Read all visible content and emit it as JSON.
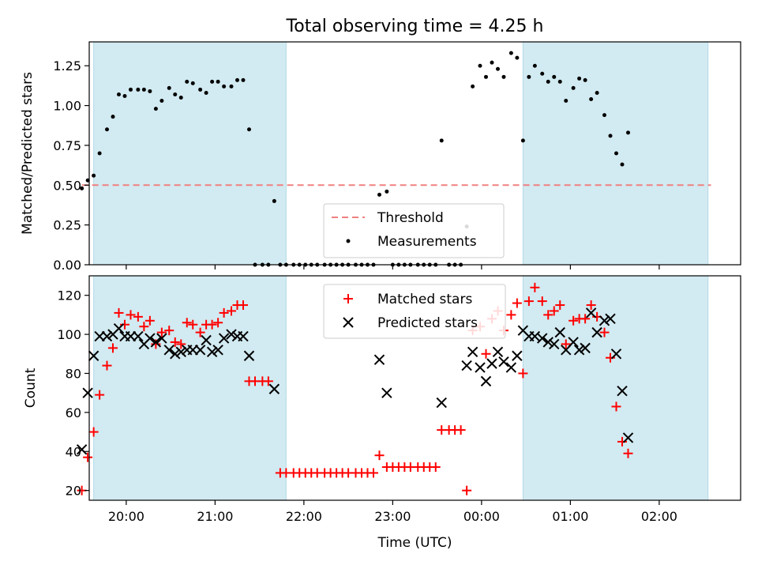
{
  "figure": {
    "title": "Total observing time = 4.25 h"
  },
  "chart_data": [
    {
      "type": "scatter",
      "panel": "top",
      "title": "Total observing time = 4.25 h",
      "xlabel": "",
      "ylabel": "Matched/Predicted stars",
      "xlim": [
        "19:35",
        "02:55"
      ],
      "ylim": [
        0,
        1.4
      ],
      "yticks": [
        0.0,
        0.25,
        0.5,
        0.75,
        1.0,
        1.25
      ],
      "ytick_labels": [
        "0.00",
        "0.25",
        "0.50",
        "0.75",
        "1.00",
        "1.25"
      ],
      "shaded_intervals": [
        [
          "19:38",
          "21:48"
        ],
        [
          "00:28",
          "02:33"
        ]
      ],
      "shade_color": "#add8e6",
      "threshold": {
        "name": "Threshold",
        "value": 0.5,
        "color": "#f08080",
        "style": "dashed"
      },
      "legend": {
        "placement": "bottom-center",
        "entries": [
          "Threshold",
          "Measurements"
        ]
      },
      "series": [
        {
          "name": "Measurements",
          "color": "#000000",
          "marker": "dot",
          "points": [
            [
              "19:30",
              0.48
            ],
            [
              "19:34",
              0.53
            ],
            [
              "19:38",
              0.56
            ],
            [
              "19:42",
              0.7
            ],
            [
              "19:47",
              0.85
            ],
            [
              "19:51",
              0.93
            ],
            [
              "19:55",
              1.07
            ],
            [
              "19:59",
              1.06
            ],
            [
              "20:03",
              1.1
            ],
            [
              "20:08",
              1.1
            ],
            [
              "20:12",
              1.1
            ],
            [
              "20:16",
              1.09
            ],
            [
              "20:20",
              0.98
            ],
            [
              "20:24",
              1.03
            ],
            [
              "20:29",
              1.11
            ],
            [
              "20:33",
              1.07
            ],
            [
              "20:37",
              1.05
            ],
            [
              "20:41",
              1.15
            ],
            [
              "20:45",
              1.14
            ],
            [
              "20:50",
              1.1
            ],
            [
              "20:54",
              1.08
            ],
            [
              "20:58",
              1.15
            ],
            [
              "21:02",
              1.15
            ],
            [
              "21:06",
              1.12
            ],
            [
              "21:11",
              1.12
            ],
            [
              "21:15",
              1.16
            ],
            [
              "21:19",
              1.16
            ],
            [
              "21:23",
              0.85
            ],
            [
              "21:27",
              0.0
            ],
            [
              "21:32",
              0.0
            ],
            [
              "21:36",
              0.0
            ],
            [
              "21:40",
              0.4
            ],
            [
              "21:44",
              0.0
            ],
            [
              "21:48",
              0.0
            ],
            [
              "21:53",
              0.0
            ],
            [
              "21:57",
              0.0
            ],
            [
              "22:01",
              0.0
            ],
            [
              "22:05",
              0.0
            ],
            [
              "22:09",
              0.0
            ],
            [
              "22:14",
              0.0
            ],
            [
              "22:18",
              0.0
            ],
            [
              "22:22",
              0.0
            ],
            [
              "22:26",
              0.0
            ],
            [
              "22:30",
              0.0
            ],
            [
              "22:35",
              0.0
            ],
            [
              "22:39",
              0.0
            ],
            [
              "22:43",
              0.0
            ],
            [
              "22:47",
              0.0
            ],
            [
              "22:51",
              0.44
            ],
            [
              "22:56",
              0.46
            ],
            [
              "23:00",
              0.0
            ],
            [
              "23:04",
              0.0
            ],
            [
              "23:08",
              0.0
            ],
            [
              "23:12",
              0.0
            ],
            [
              "23:17",
              0.0
            ],
            [
              "23:21",
              0.0
            ],
            [
              "23:25",
              0.0
            ],
            [
              "23:29",
              0.0
            ],
            [
              "23:33",
              0.78
            ],
            [
              "23:38",
              0.0
            ],
            [
              "23:42",
              0.0
            ],
            [
              "23:46",
              0.0
            ],
            [
              "23:50",
              0.24
            ],
            [
              "23:54",
              1.12
            ],
            [
              "23:59",
              1.25
            ],
            [
              "00:03",
              1.18
            ],
            [
              "00:07",
              1.27
            ],
            [
              "00:11",
              1.23
            ],
            [
              "00:15",
              1.18
            ],
            [
              "00:20",
              1.33
            ],
            [
              "00:24",
              1.3
            ],
            [
              "00:28",
              0.78
            ],
            [
              "00:32",
              1.18
            ],
            [
              "00:36",
              1.25
            ],
            [
              "00:41",
              1.2
            ],
            [
              "00:45",
              1.15
            ],
            [
              "00:49",
              1.18
            ],
            [
              "00:53",
              1.15
            ],
            [
              "00:57",
              1.03
            ],
            [
              "01:02",
              1.11
            ],
            [
              "01:06",
              1.17
            ],
            [
              "01:10",
              1.16
            ],
            [
              "01:14",
              1.04
            ],
            [
              "01:18",
              1.08
            ],
            [
              "01:23",
              0.94
            ],
            [
              "01:27",
              0.81
            ],
            [
              "01:31",
              0.7
            ],
            [
              "01:35",
              0.63
            ],
            [
              "01:39",
              0.83
            ]
          ]
        }
      ]
    },
    {
      "type": "scatter",
      "panel": "bottom",
      "xlabel": "Time (UTC)",
      "ylabel": "Count",
      "xlim": [
        "19:35",
        "02:55"
      ],
      "ylim": [
        15,
        130
      ],
      "xticks": [
        "20:00",
        "21:00",
        "22:00",
        "23:00",
        "00:00",
        "01:00",
        "02:00"
      ],
      "yticks": [
        20,
        40,
        60,
        80,
        100,
        120
      ],
      "ytick_labels": [
        "20",
        "40",
        "60",
        "80",
        "100",
        "120"
      ],
      "shaded_intervals": [
        [
          "19:38",
          "21:48"
        ],
        [
          "00:28",
          "02:33"
        ]
      ],
      "shade_color": "#add8e6",
      "legend": {
        "placement": "top-center",
        "entries": [
          "Matched stars",
          "Predicted stars"
        ]
      },
      "series": [
        {
          "name": "Matched stars",
          "color": "#ff0000",
          "marker": "plus",
          "points": [
            [
              "19:30",
              20
            ],
            [
              "19:34",
              37
            ],
            [
              "19:38",
              50
            ],
            [
              "19:42",
              69
            ],
            [
              "19:47",
              84
            ],
            [
              "19:51",
              93
            ],
            [
              "19:55",
              111
            ],
            [
              "19:59",
              105
            ],
            [
              "20:03",
              110
            ],
            [
              "20:08",
              109
            ],
            [
              "20:12",
              104
            ],
            [
              "20:16",
              107
            ],
            [
              "20:20",
              95
            ],
            [
              "20:24",
              101
            ],
            [
              "20:29",
              102
            ],
            [
              "20:33",
              96
            ],
            [
              "20:37",
              95
            ],
            [
              "20:41",
              106
            ],
            [
              "20:45",
              105
            ],
            [
              "20:50",
              101
            ],
            [
              "20:54",
              105
            ],
            [
              "20:58",
              105
            ],
            [
              "21:02",
              106
            ],
            [
              "21:06",
              111
            ],
            [
              "21:11",
              112
            ],
            [
              "21:15",
              115
            ],
            [
              "21:19",
              115
            ],
            [
              "21:23",
              76
            ],
            [
              "21:27",
              76
            ],
            [
              "21:32",
              76
            ],
            [
              "21:36",
              76
            ],
            [
              "21:44",
              29
            ],
            [
              "21:48",
              29
            ],
            [
              "21:53",
              29
            ],
            [
              "21:57",
              29
            ],
            [
              "22:01",
              29
            ],
            [
              "22:05",
              29
            ],
            [
              "22:09",
              29
            ],
            [
              "22:14",
              29
            ],
            [
              "22:18",
              29
            ],
            [
              "22:22",
              29
            ],
            [
              "22:26",
              29
            ],
            [
              "22:30",
              29
            ],
            [
              "22:35",
              29
            ],
            [
              "22:39",
              29
            ],
            [
              "22:43",
              29
            ],
            [
              "22:47",
              29
            ],
            [
              "22:51",
              38
            ],
            [
              "22:56",
              32
            ],
            [
              "23:00",
              32
            ],
            [
              "23:04",
              32
            ],
            [
              "23:08",
              32
            ],
            [
              "23:12",
              32
            ],
            [
              "23:17",
              32
            ],
            [
              "23:21",
              32
            ],
            [
              "23:25",
              32
            ],
            [
              "23:29",
              32
            ],
            [
              "23:33",
              51
            ],
            [
              "23:38",
              51
            ],
            [
              "23:42",
              51
            ],
            [
              "23:46",
              51
            ],
            [
              "23:50",
              20
            ],
            [
              "23:54",
              102
            ],
            [
              "23:59",
              104
            ],
            [
              "00:03",
              90
            ],
            [
              "00:07",
              108
            ],
            [
              "00:11",
              112
            ],
            [
              "00:15",
              102
            ],
            [
              "00:20",
              110
            ],
            [
              "00:24",
              116
            ],
            [
              "00:28",
              80
            ],
            [
              "00:32",
              117
            ],
            [
              "00:36",
              124
            ],
            [
              "00:41",
              117
            ],
            [
              "00:45",
              110
            ],
            [
              "00:49",
              112
            ],
            [
              "00:53",
              115
            ],
            [
              "00:57",
              95
            ],
            [
              "01:02",
              107
            ],
            [
              "01:06",
              108
            ],
            [
              "01:10",
              108
            ],
            [
              "01:14",
              115
            ],
            [
              "01:18",
              109
            ],
            [
              "01:23",
              101
            ],
            [
              "01:27",
              88
            ],
            [
              "01:31",
              63
            ],
            [
              "01:35",
              45
            ],
            [
              "01:39",
              39
            ]
          ]
        },
        {
          "name": "Predicted stars",
          "color": "#000000",
          "marker": "x",
          "points": [
            [
              "19:30",
              41
            ],
            [
              "19:34",
              70
            ],
            [
              "19:38",
              89
            ],
            [
              "19:42",
              99
            ],
            [
              "19:47",
              99
            ],
            [
              "19:51",
              100
            ],
            [
              "19:55",
              103
            ],
            [
              "19:59",
              99
            ],
            [
              "20:03",
              99
            ],
            [
              "20:08",
              99
            ],
            [
              "20:12",
              95
            ],
            [
              "20:16",
              98
            ],
            [
              "20:20",
              96
            ],
            [
              "20:24",
              98
            ],
            [
              "20:29",
              92
            ],
            [
              "20:33",
              90
            ],
            [
              "20:37",
              91
            ],
            [
              "20:41",
              92
            ],
            [
              "20:45",
              92
            ],
            [
              "20:50",
              92
            ],
            [
              "20:54",
              97
            ],
            [
              "20:58",
              91
            ],
            [
              "21:02",
              92
            ],
            [
              "21:06",
              98
            ],
            [
              "21:11",
              100
            ],
            [
              "21:15",
              99
            ],
            [
              "21:19",
              99
            ],
            [
              "21:23",
              89
            ],
            [
              "21:40",
              72
            ],
            [
              "22:51",
              87
            ],
            [
              "22:56",
              70
            ],
            [
              "23:33",
              65
            ],
            [
              "23:50",
              84
            ],
            [
              "23:54",
              91
            ],
            [
              "23:59",
              83
            ],
            [
              "00:03",
              76
            ],
            [
              "00:07",
              85
            ],
            [
              "00:11",
              91
            ],
            [
              "00:15",
              86
            ],
            [
              "00:20",
              83
            ],
            [
              "00:24",
              89
            ],
            [
              "00:28",
              102
            ],
            [
              "00:32",
              99
            ],
            [
              "00:36",
              99
            ],
            [
              "00:41",
              98
            ],
            [
              "00:45",
              96
            ],
            [
              "00:49",
              95
            ],
            [
              "00:53",
              101
            ],
            [
              "00:57",
              92
            ],
            [
              "01:02",
              96
            ],
            [
              "01:06",
              92
            ],
            [
              "01:10",
              93
            ],
            [
              "01:14",
              111
            ],
            [
              "01:18",
              101
            ],
            [
              "01:23",
              107
            ],
            [
              "01:27",
              108
            ],
            [
              "01:31",
              90
            ],
            [
              "01:35",
              71
            ],
            [
              "01:39",
              47
            ]
          ]
        }
      ]
    }
  ]
}
